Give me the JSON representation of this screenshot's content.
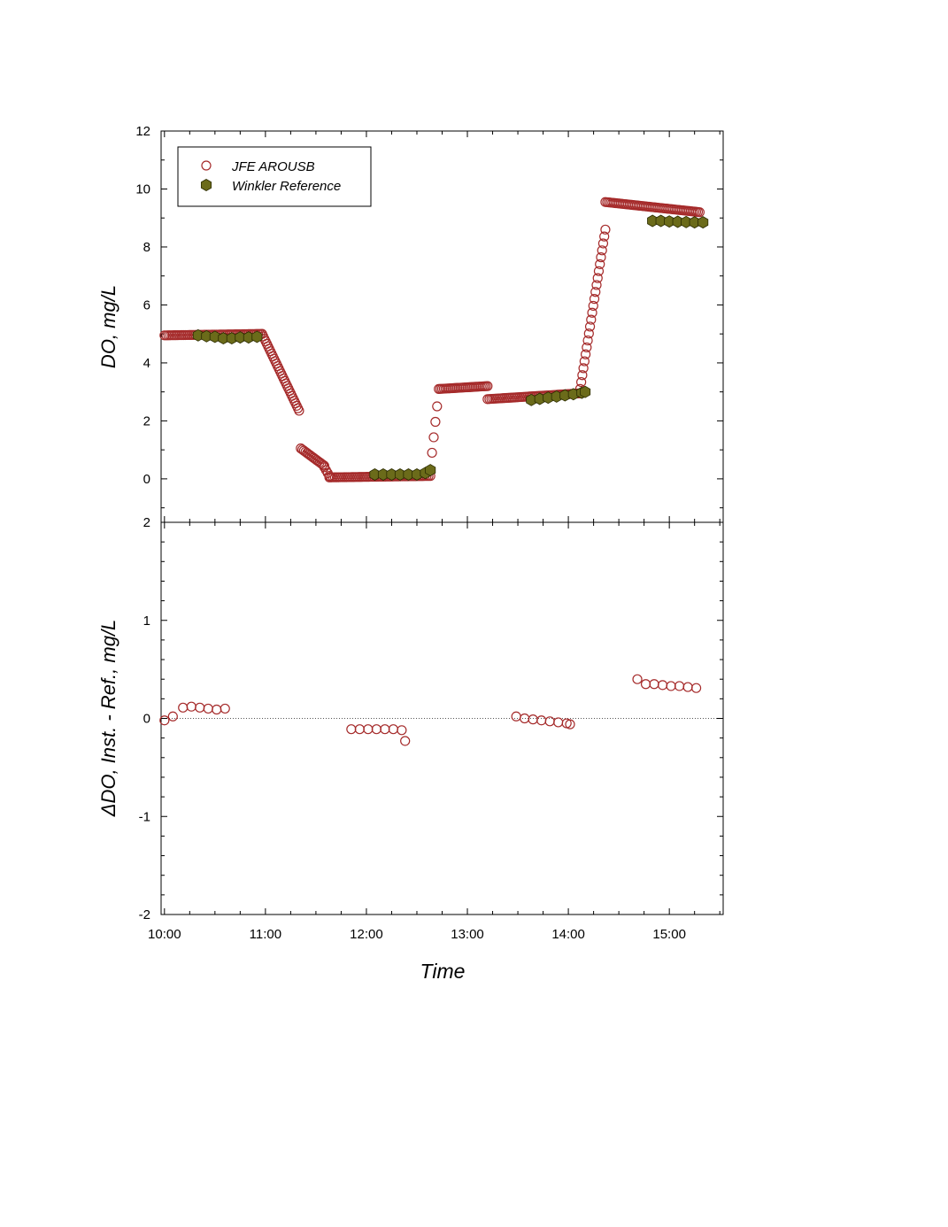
{
  "chart_data": [
    {
      "type": "scatter",
      "panel": "top",
      "ylabel": "DO, mg/L",
      "xlabel": "",
      "xlim": [
        "09:58",
        "15:32"
      ],
      "ylim": [
        -1.5,
        12
      ],
      "yticks": [
        "0",
        "2",
        "4",
        "6",
        "8",
        "10",
        "12"
      ],
      "grid": false,
      "legend_position": "top-left",
      "colors": {
        "JFE AROUSB": "#a52a2a",
        "Winkler Reference": "#6b6b1a"
      },
      "series": [
        {
          "name": "JFE AROUSB",
          "marker": "open-circle",
          "segments": [
            {
              "t0": "10:00",
              "t1": "10:58",
              "v0": 4.95,
              "v1": 5.0,
              "n": 52
            },
            {
              "t0": "10:58",
              "t1": "11:20",
              "v0": 5.0,
              "v1": 2.35,
              "n": 32
            },
            {
              "t0": "11:21",
              "t1": "11:35",
              "v0": 1.05,
              "v1": 0.45,
              "n": 16
            },
            {
              "t0": "11:35",
              "t1": "11:38",
              "v0": 0.4,
              "v1": 0.1,
              "n": 4
            },
            {
              "t0": "11:38",
              "t1": "12:38",
              "v0": 0.05,
              "v1": 0.1,
              "n": 55
            },
            {
              "t0": "12:39",
              "t1": "12:42",
              "v0": 0.9,
              "v1": 2.5,
              "n": 4
            },
            {
              "t0": "12:43",
              "t1": "13:12",
              "v0": 3.1,
              "v1": 3.2,
              "n": 30
            },
            {
              "t0": "13:12",
              "t1": "14:07",
              "v0": 2.75,
              "v1": 2.95,
              "n": 50
            },
            {
              "t0": "14:07",
              "t1": "14:22",
              "v0": 3.1,
              "v1": 8.6,
              "n": 24
            },
            {
              "t0": "14:22",
              "t1": "15:18",
              "v0": 9.55,
              "v1": 9.2,
              "n": 55
            }
          ]
        },
        {
          "name": "Winkler Reference",
          "marker": "filled-hexagon",
          "points": [
            {
              "t": "10:20",
              "v": 4.95
            },
            {
              "t": "10:25",
              "v": 4.92
            },
            {
              "t": "10:30",
              "v": 4.9
            },
            {
              "t": "10:35",
              "v": 4.85
            },
            {
              "t": "10:40",
              "v": 4.85
            },
            {
              "t": "10:45",
              "v": 4.88
            },
            {
              "t": "10:50",
              "v": 4.88
            },
            {
              "t": "10:55",
              "v": 4.9
            },
            {
              "t": "12:05",
              "v": 0.15
            },
            {
              "t": "12:10",
              "v": 0.15
            },
            {
              "t": "12:15",
              "v": 0.15
            },
            {
              "t": "12:20",
              "v": 0.15
            },
            {
              "t": "12:25",
              "v": 0.15
            },
            {
              "t": "12:30",
              "v": 0.15
            },
            {
              "t": "12:35",
              "v": 0.2
            },
            {
              "t": "12:38",
              "v": 0.3
            },
            {
              "t": "13:38",
              "v": 2.72
            },
            {
              "t": "13:43",
              "v": 2.76
            },
            {
              "t": "13:48",
              "v": 2.8
            },
            {
              "t": "13:53",
              "v": 2.84
            },
            {
              "t": "13:58",
              "v": 2.88
            },
            {
              "t": "14:03",
              "v": 2.92
            },
            {
              "t": "14:08",
              "v": 2.97
            },
            {
              "t": "14:10",
              "v": 3.0
            },
            {
              "t": "14:50",
              "v": 8.9
            },
            {
              "t": "14:55",
              "v": 8.9
            },
            {
              "t": "15:00",
              "v": 8.88
            },
            {
              "t": "15:05",
              "v": 8.87
            },
            {
              "t": "15:10",
              "v": 8.86
            },
            {
              "t": "15:15",
              "v": 8.85
            },
            {
              "t": "15:20",
              "v": 8.85
            }
          ]
        }
      ]
    },
    {
      "type": "scatter",
      "panel": "bottom",
      "ylabel": "ΔDO, Inst. - Ref., mg/L",
      "xlabel": "Time",
      "xlim": [
        "09:58",
        "15:32"
      ],
      "ylim": [
        -2,
        2
      ],
      "xticks": [
        "10:00",
        "11:00",
        "12:00",
        "13:00",
        "14:00",
        "15:00"
      ],
      "yticks": [
        "-2",
        "-1",
        "0",
        "1",
        "2"
      ],
      "zero_line": "dotted",
      "grid": false,
      "series": [
        {
          "name": "",
          "marker": "open-circle",
          "points": [
            {
              "t": "10:00",
              "v": -0.02
            },
            {
              "t": "10:05",
              "v": 0.02
            },
            {
              "t": "10:11",
              "v": 0.11
            },
            {
              "t": "10:16",
              "v": 0.12
            },
            {
              "t": "10:21",
              "v": 0.11
            },
            {
              "t": "10:26",
              "v": 0.1
            },
            {
              "t": "10:31",
              "v": 0.09
            },
            {
              "t": "10:36",
              "v": 0.1
            },
            {
              "t": "11:51",
              "v": -0.11
            },
            {
              "t": "11:56",
              "v": -0.11
            },
            {
              "t": "12:01",
              "v": -0.11
            },
            {
              "t": "12:06",
              "v": -0.11
            },
            {
              "t": "12:11",
              "v": -0.11
            },
            {
              "t": "12:16",
              "v": -0.11
            },
            {
              "t": "12:21",
              "v": -0.12
            },
            {
              "t": "12:23",
              "v": -0.23
            },
            {
              "t": "13:29",
              "v": 0.02
            },
            {
              "t": "13:34",
              "v": 0.0
            },
            {
              "t": "13:39",
              "v": -0.01
            },
            {
              "t": "13:44",
              "v": -0.02
            },
            {
              "t": "13:49",
              "v": -0.03
            },
            {
              "t": "13:54",
              "v": -0.04
            },
            {
              "t": "13:59",
              "v": -0.05
            },
            {
              "t": "14:01",
              "v": -0.06
            },
            {
              "t": "14:41",
              "v": 0.4
            },
            {
              "t": "14:46",
              "v": 0.35
            },
            {
              "t": "14:51",
              "v": 0.35
            },
            {
              "t": "14:56",
              "v": 0.34
            },
            {
              "t": "15:01",
              "v": 0.33
            },
            {
              "t": "15:06",
              "v": 0.33
            },
            {
              "t": "15:11",
              "v": 0.32
            },
            {
              "t": "15:16",
              "v": 0.31
            }
          ]
        }
      ]
    }
  ]
}
